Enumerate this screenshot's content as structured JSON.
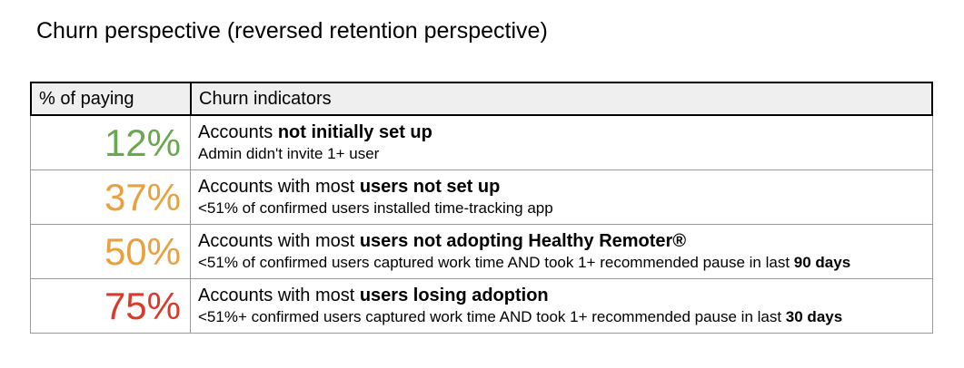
{
  "page": {
    "title": "Churn perspective (reversed retention perspective)"
  },
  "colors": {
    "green": "#6aa84f",
    "orange": "#e9a13f",
    "red": "#d93a2b",
    "header_background": "#efefef",
    "header_border": "#000000",
    "row_border": "#999999"
  },
  "table": {
    "headers": [
      "% of paying",
      "Churn indicators"
    ],
    "rows": [
      {
        "percent": "12%",
        "percent_style": "color:#6aa84f",
        "title_regular": "Accounts ",
        "title_bold": "not initially set up",
        "subtitle_regular": "Admin didn't invite 1+ user",
        "subtitle_bold": ""
      },
      {
        "percent": "37%",
        "percent_style": "color:#e9a13f",
        "title_regular": "Accounts with most ",
        "title_bold": "users not set up",
        "subtitle_regular": "<51% of confirmed users installed time-tracking app",
        "subtitle_bold": ""
      },
      {
        "percent": "50%",
        "percent_style": "color:#e9a13f",
        "title_regular": "Accounts with most ",
        "title_bold": "users not adopting Healthy Remoter®",
        "subtitle_regular": "<51% of confirmed users captured work time AND took 1+ recommended pause in last ",
        "subtitle_bold": "90 days"
      },
      {
        "percent": "75%",
        "percent_style": "color:#d93a2b",
        "title_regular": "Accounts with most ",
        "title_bold": "users losing adoption",
        "subtitle_regular": "<51%+ confirmed users captured work time AND took 1+ recommended pause in last ",
        "subtitle_bold": "30 days"
      }
    ]
  }
}
